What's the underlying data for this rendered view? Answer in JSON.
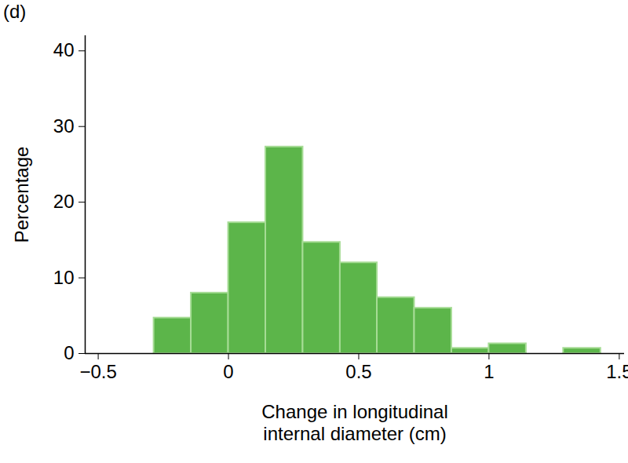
{
  "chart_data": {
    "type": "histogram",
    "title": "(d)",
    "x_label": "Change in longitudinal\ninternal diameter (cm)",
    "y_label": "Percentage",
    "bins": [
      -0.286,
      -0.143,
      0,
      0.143,
      0.286,
      0.429,
      0.571,
      0.714,
      0.857,
      1.0,
      1.143,
      1.286,
      1.429
    ],
    "values": [
      4.7,
      8.0,
      17.3,
      27.3,
      14.7,
      12.0,
      7.4,
      6.0,
      0.7,
      1.3,
      0,
      0.7
    ],
    "color": "#5cb54a",
    "xlim": [
      -0.55,
      1.52
    ],
    "xticks": [
      {
        "value": -0.5,
        "label": "−0.5"
      },
      0,
      0.5,
      1,
      1.5
    ],
    "ylim": [
      0,
      42
    ],
    "yticks": [
      0,
      10,
      20,
      30,
      40
    ],
    "grid": false
  }
}
